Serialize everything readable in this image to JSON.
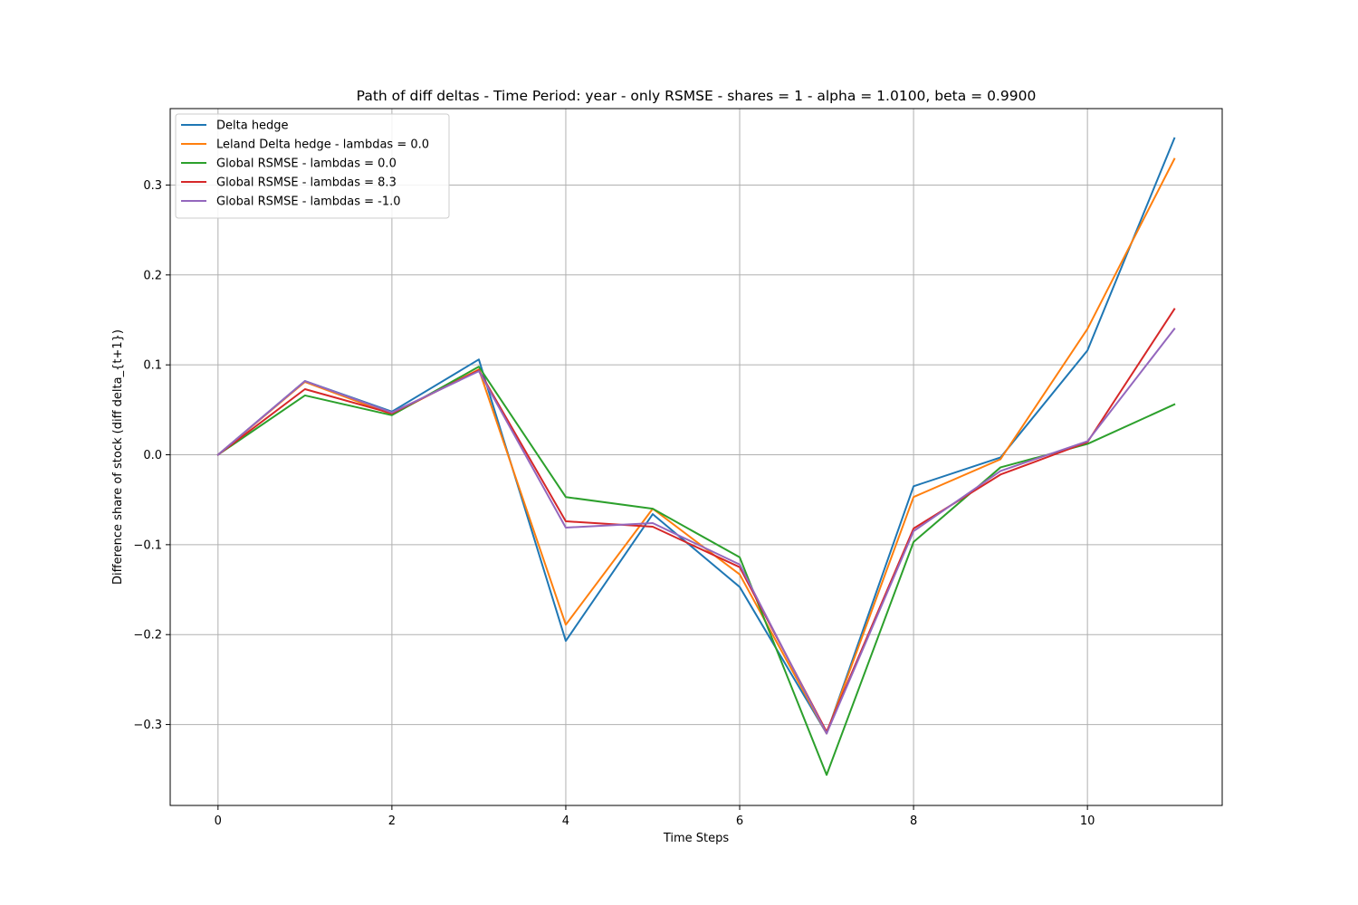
{
  "chart_data": {
    "type": "line",
    "title": "Path of diff deltas - Time Period: year - only RSMSE - shares = 1 - alpha = 1.0100, beta = 0.9900",
    "xlabel": "Time Steps",
    "ylabel": "Difference share of stock (diff delta_{t+1})",
    "xlim": [
      -0.55,
      11.55
    ],
    "ylim": [
      -0.39,
      0.385
    ],
    "xticks": [
      0,
      2,
      4,
      6,
      8,
      10
    ],
    "xtick_labels": [
      "0",
      "2",
      "4",
      "6",
      "8",
      "10"
    ],
    "yticks": [
      -0.3,
      -0.2,
      -0.1,
      0.0,
      0.1,
      0.2,
      0.3
    ],
    "ytick_labels": [
      "−0.3",
      "−0.2",
      "−0.1",
      "0.0",
      "0.1",
      "0.2",
      "0.3"
    ],
    "grid": true,
    "legend_position": "top-left",
    "x": [
      0,
      1,
      2,
      3,
      4,
      5,
      6,
      7,
      8,
      9,
      10,
      11
    ],
    "series": [
      {
        "name": "Delta hedge",
        "color": "#1f77b4",
        "values": [
          0.0,
          0.082,
          0.048,
          0.106,
          -0.207,
          -0.066,
          -0.147,
          -0.31,
          -0.035,
          -0.003,
          0.116,
          0.352
        ]
      },
      {
        "name": "Leland Delta hedge - lambdas = 0.0",
        "color": "#ff7f0e",
        "values": [
          0.0,
          0.081,
          0.045,
          0.095,
          -0.189,
          -0.06,
          -0.133,
          -0.31,
          -0.047,
          -0.005,
          0.14,
          0.329
        ]
      },
      {
        "name": "Global RSMSE - lambdas = 0.0",
        "color": "#2ca02c",
        "values": [
          0.0,
          0.066,
          0.044,
          0.098,
          -0.047,
          -0.06,
          -0.114,
          -0.356,
          -0.097,
          -0.014,
          0.012,
          0.056
        ]
      },
      {
        "name": "Global RSMSE - lambdas = 8.3",
        "color": "#d62728",
        "values": [
          0.0,
          0.073,
          0.046,
          0.094,
          -0.074,
          -0.08,
          -0.125,
          -0.308,
          -0.082,
          -0.022,
          0.014,
          0.162
        ]
      },
      {
        "name": "Global RSMSE - lambdas = -1.0",
        "color": "#9467bd",
        "values": [
          0.0,
          0.082,
          0.047,
          0.093,
          -0.081,
          -0.076,
          -0.122,
          -0.31,
          -0.085,
          -0.018,
          0.015,
          0.14
        ]
      }
    ]
  }
}
